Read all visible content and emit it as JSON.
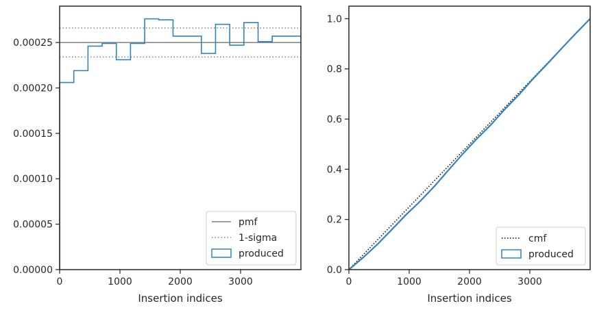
{
  "chart_data": [
    {
      "type": "line",
      "xlabel": "Insertion indices",
      "ylabel": "",
      "xlim": [
        0,
        4000
      ],
      "ylim": [
        0,
        0.00029
      ],
      "x_ticks": [
        0,
        1000,
        2000,
        3000
      ],
      "x_tick_labels": [
        "0",
        "1000",
        "2000",
        "3000"
      ],
      "y_ticks": [
        0,
        5e-05,
        0.0001,
        0.00015,
        0.0002,
        0.00025
      ],
      "y_tick_labels": [
        "0.00000",
        "0.00005",
        "0.00010",
        "0.00015",
        "0.00020",
        "0.00025"
      ],
      "grid": false,
      "legend": "lower-right",
      "legend_entries": [
        "pmf",
        "1-sigma",
        "produced"
      ],
      "pmf": 0.00025,
      "sigma_upper": 0.000266,
      "sigma_lower": 0.000234,
      "series": [
        {
          "name": "produced",
          "style": "step-histogram",
          "bin_edges": [
            0,
            235,
            470,
            705,
            940,
            1175,
            1410,
            1645,
            1880,
            2115,
            2350,
            2585,
            2820,
            3055,
            3290,
            3525,
            3760,
            4000
          ],
          "values": [
            0.000206,
            0.000219,
            0.000246,
            0.000249,
            0.000231,
            0.000249,
            0.000276,
            0.000275,
            0.000257,
            0.000257,
            0.000238,
            0.00027,
            0.000247,
            0.000272,
            0.000251,
            0.000257,
            0.000257
          ]
        }
      ],
      "colors": {
        "produced": "#3182bd",
        "pmf": "#808080",
        "sigma": "#808080",
        "axes": "#262626"
      }
    },
    {
      "type": "line",
      "xlabel": "Insertion indices",
      "ylabel": "",
      "xlim": [
        0,
        4000
      ],
      "ylim": [
        0,
        1.05
      ],
      "x_ticks": [
        0,
        1000,
        2000,
        3000
      ],
      "x_tick_labels": [
        "0",
        "1000",
        "2000",
        "3000"
      ],
      "y_ticks": [
        0,
        0.2,
        0.4,
        0.6,
        0.8,
        1.0
      ],
      "y_tick_labels": [
        "0.0",
        "0.2",
        "0.4",
        "0.6",
        "0.8",
        "1.0"
      ],
      "grid": false,
      "legend": "lower-right",
      "legend_entries": [
        "cmf",
        "produced"
      ],
      "series": [
        {
          "name": "cmf",
          "style": "dotted",
          "x": [
            0,
            4000
          ],
          "y": [
            0,
            1.0
          ]
        },
        {
          "name": "produced",
          "style": "step",
          "x": [
            0,
            235,
            470,
            705,
            940,
            1175,
            1410,
            1645,
            1880,
            2115,
            2350,
            2585,
            2820,
            3055,
            3290,
            3525,
            3760,
            4000
          ],
          "y": [
            0,
            0.048,
            0.1,
            0.158,
            0.217,
            0.271,
            0.33,
            0.395,
            0.459,
            0.52,
            0.576,
            0.639,
            0.697,
            0.761,
            0.82,
            0.881,
            0.941,
            1.0
          ]
        }
      ],
      "colors": {
        "produced": "#3182bd",
        "cmf": "#000000",
        "axes": "#262626"
      }
    }
  ]
}
